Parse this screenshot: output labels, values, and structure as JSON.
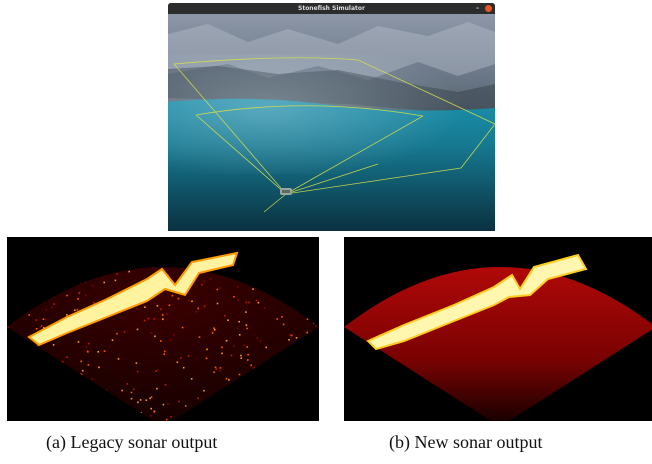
{
  "window": {
    "title": "Stonefish Simulator",
    "minimize_glyph": "–",
    "close_color": "#e95420"
  },
  "scene": {
    "icons": [
      "rock-cliff",
      "water",
      "sonar-beam-wireframe",
      "underwater-vehicle"
    ],
    "wireframe_color": "#d8e04a"
  },
  "panels": [
    {
      "id": "legacy",
      "colormap": [
        "#000000",
        "#5a0000",
        "#ff8a00",
        "#ffffc0"
      ]
    },
    {
      "id": "new",
      "colormap": [
        "#000000",
        "#8a0000",
        "#ffcc00",
        "#ffffd0"
      ]
    }
  ],
  "captions": {
    "a": "(a) Legacy sonar output",
    "b": "(b) New sonar output"
  }
}
